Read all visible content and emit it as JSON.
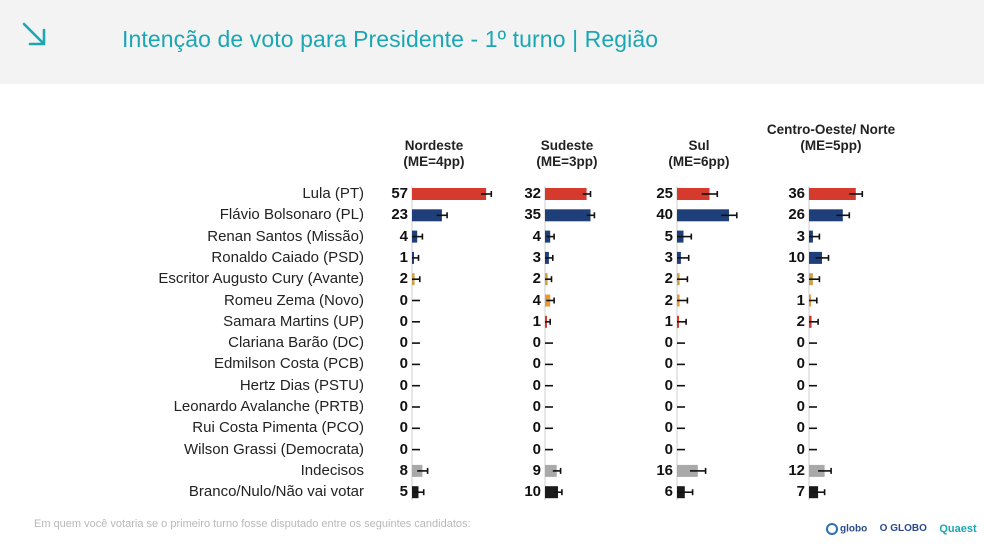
{
  "header": {
    "title": "Intenção de voto para Presidente - 1º turno | Região",
    "icon": "arrow-down-right-icon",
    "accent_color": "#1aa7b3"
  },
  "chart_data": {
    "type": "bar",
    "title": "Intenção de voto para Presidente - 1º turno | Região",
    "categories": [
      "Lula (PT)",
      "Flávio Bolsonaro (PL)",
      "Renan Santos (Missão)",
      "Ronaldo Caiado (PSD)",
      "Escritor Augusto Cury (Avante)",
      "Romeu Zema (Novo)",
      "Samara Martins (UP)",
      "Clariana Barão (DC)",
      "Edmilson Costa (PCB)",
      "Hertz Dias (PSTU)",
      "Leonardo Avalanche (PRTB)",
      "Rui Costa Pimenta (PCO)",
      "Wilson Grassi (Democrata)",
      "Indecisos",
      "Branco/Nulo/Não vai votar"
    ],
    "bar_colors": [
      "#d63a2c",
      "#1e3f7a",
      "#1e3f7a",
      "#1e3f7a",
      "#c9a24a",
      "#e89a3a",
      "#d63a2c",
      "#1e3f7a",
      "#d63a2c",
      "#d63a2c",
      "#1e3f7a",
      "#d63a2c",
      "#1e3f7a",
      "#a9a9a9",
      "#1a1a1a"
    ],
    "series": [
      {
        "name": "Nordeste",
        "margin_label": "(ME=4pp)",
        "values": [
          57,
          23,
          4,
          1,
          2,
          0,
          0,
          0,
          0,
          0,
          0,
          0,
          0,
          8,
          5
        ]
      },
      {
        "name": "Sudeste",
        "margin_label": "(ME=3pp)",
        "values": [
          32,
          35,
          4,
          3,
          2,
          4,
          1,
          0,
          0,
          0,
          0,
          0,
          0,
          9,
          10
        ]
      },
      {
        "name": "Sul",
        "margin_label": "(ME=6pp)",
        "values": [
          25,
          40,
          5,
          3,
          2,
          2,
          1,
          0,
          0,
          0,
          0,
          0,
          0,
          16,
          6
        ]
      },
      {
        "name": "Centro-Oeste/ Norte",
        "margin_label": "(ME=5pp)",
        "values": [
          36,
          26,
          3,
          10,
          3,
          1,
          2,
          0,
          0,
          0,
          0,
          0,
          0,
          12,
          7
        ]
      }
    ],
    "error_margins": [
      4,
      3,
      6,
      5
    ],
    "xlim": [
      0,
      60
    ],
    "grid": false,
    "legend": "none"
  },
  "footer": {
    "note": "Em quem você votaria se o primeiro turno fosse disputado entre os seguintes candidatos:",
    "logos": [
      "globo",
      "O GLOBO",
      "Quaest"
    ]
  }
}
